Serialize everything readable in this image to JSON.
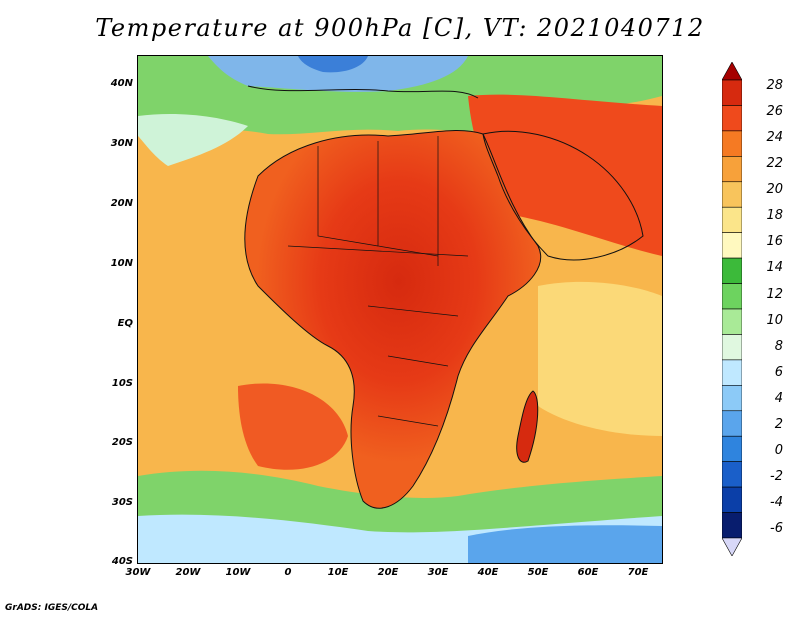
{
  "title": "Temperature at 900hPa [C], VT: 2021040712",
  "footer": "GrADS: IGES/COLA",
  "map": {
    "region": "Africa",
    "variable": "Temperature at 900hPa",
    "units": "C",
    "valid_time": "2021040712",
    "lon_range": [
      -30,
      75
    ],
    "lat_range": [
      -40,
      45
    ]
  },
  "axes": {
    "lat_labels": [
      "40N",
      "30N",
      "20N",
      "10N",
      "EQ",
      "10S",
      "20S",
      "30S",
      "40S"
    ],
    "lon_labels": [
      "30W",
      "20W",
      "10W",
      "0",
      "10E",
      "20E",
      "30E",
      "40E",
      "50E",
      "60E",
      "70E"
    ]
  },
  "colorbar": {
    "labels": [
      "28",
      "26",
      "24",
      "22",
      "20",
      "18",
      "16",
      "14",
      "12",
      "10",
      "8",
      "6",
      "4",
      "2",
      "0",
      "-2",
      "-4",
      "-6"
    ],
    "colors": [
      "#a50000",
      "#d62a0f",
      "#ef4a1c",
      "#f57a23",
      "#f7a13a",
      "#f8c45c",
      "#fbe58a",
      "#fff9bf",
      "#3cba3a",
      "#6dd35f",
      "#a9ea97",
      "#e0f8e0",
      "#bfe8ff",
      "#8ccaf7",
      "#5aa5ec",
      "#2f84de",
      "#1a5fc9",
      "#0b3fa8",
      "#081d6e",
      "#d8d8f8"
    ]
  }
}
